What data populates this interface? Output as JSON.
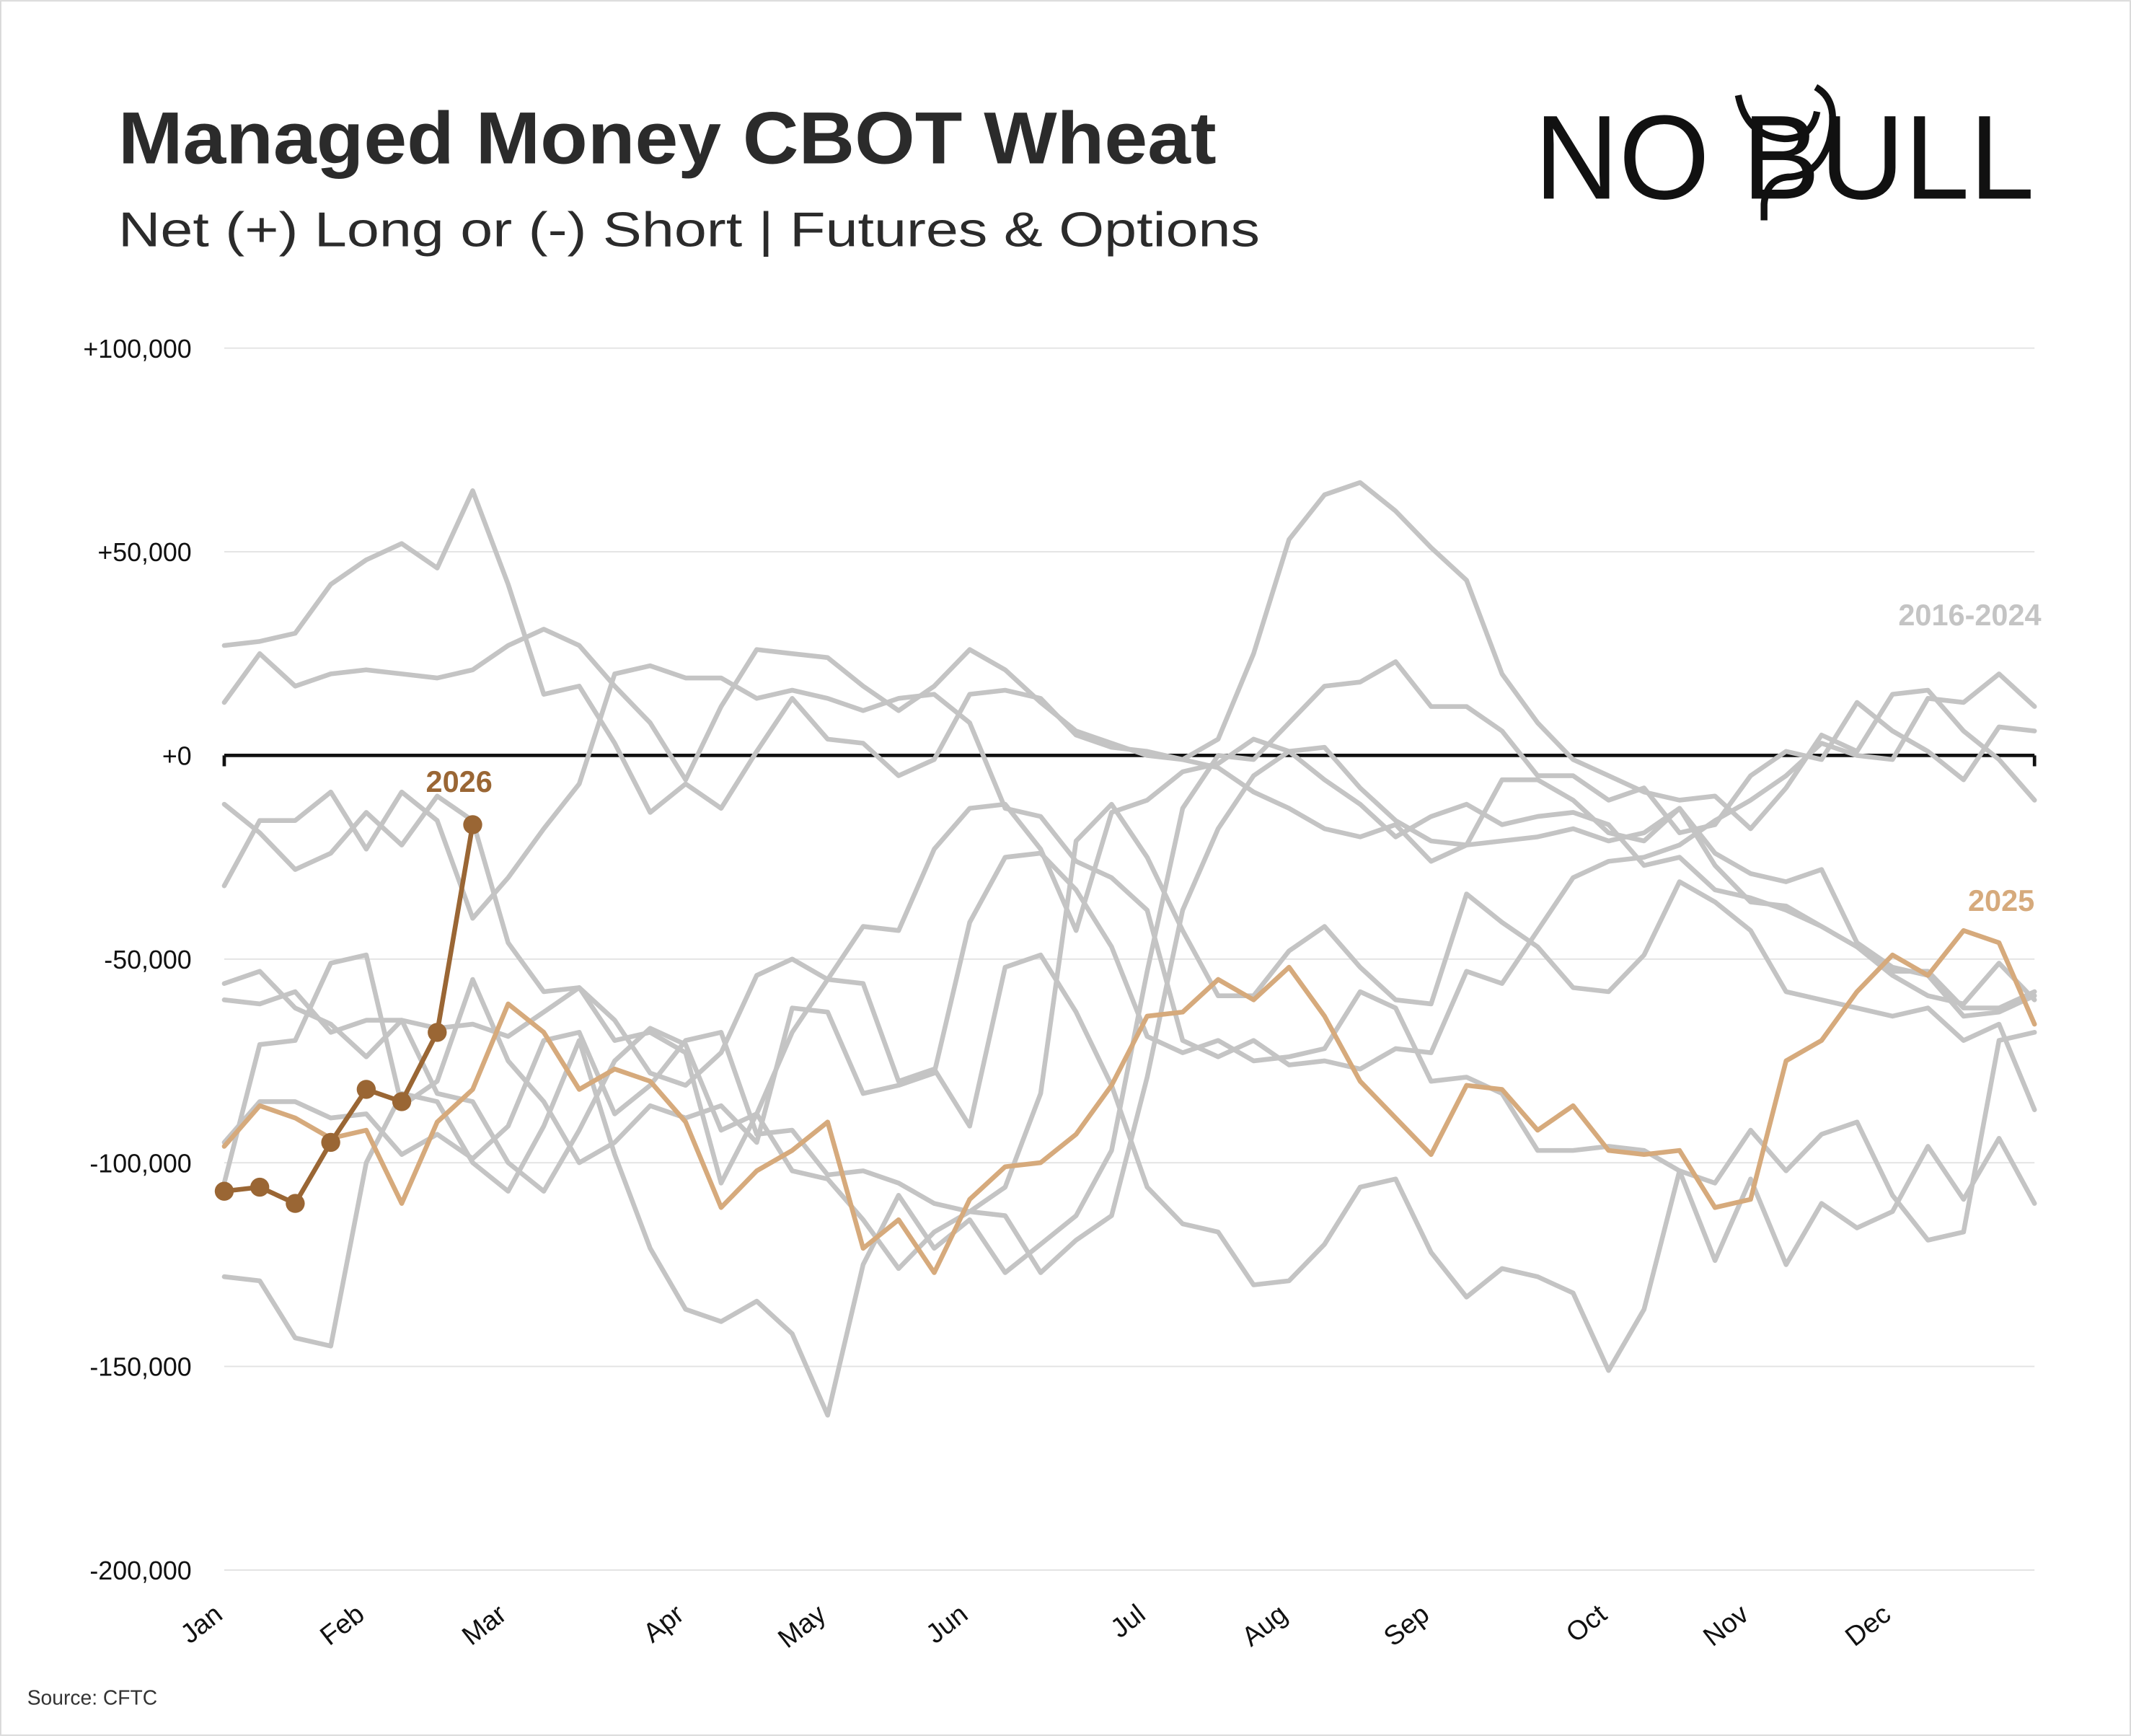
{
  "chart_data": {
    "type": "line",
    "title": "Managed Money CBOT Wheat",
    "subtitle": "Net (+) Long or (-) Short | Futures & Options",
    "logo": "NO BULL",
    "source": "Source: CFTC",
    "group_label": "2016-2024",
    "group_color": "#c4c4c4",
    "grid": true,
    "categories": [
      "Jan",
      null,
      null,
      null,
      "Feb",
      null,
      null,
      null,
      "Mar",
      null,
      null,
      null,
      null,
      "Apr",
      null,
      null,
      null,
      "May",
      null,
      null,
      null,
      "Jun",
      null,
      null,
      null,
      null,
      "Jul",
      null,
      null,
      null,
      "Aug",
      null,
      null,
      null,
      "Sep",
      null,
      null,
      null,
      null,
      "Oct",
      null,
      null,
      null,
      "Nov",
      null,
      null,
      null,
      "Dec",
      null,
      null,
      null,
      null
    ],
    "ylim": [
      -200000,
      100000
    ],
    "yticks": [
      {
        "value": -200000,
        "label": "-200,000"
      },
      {
        "value": -150000,
        "label": "-150,000"
      },
      {
        "value": -100000,
        "label": "-100,000"
      },
      {
        "value": -50000,
        "label": "-50,000"
      },
      {
        "value": 0,
        "label": "+0"
      },
      {
        "value": 50000,
        "label": "+50,000"
      },
      {
        "value": 100000,
        "label": "+100,000"
      }
    ],
    "series": [
      {
        "color": "#c4c4c4",
        "values": [
          27000,
          28000,
          30000,
          42000,
          48000,
          52000,
          46000,
          65000,
          42000,
          15000,
          17000,
          3000,
          -14000,
          -7000,
          -13000,
          1000,
          14000,
          4000,
          3000,
          -5000,
          -1000,
          15000,
          16000,
          14000,
          5000,
          2000,
          1000,
          -1000,
          -3000,
          -9000,
          -13000,
          -18000,
          -20000,
          -17000,
          -26000,
          -22000,
          -21000,
          -20000,
          -18000,
          -21000,
          -19000,
          -13000,
          -27000,
          -36000,
          -37000,
          -42000,
          -47000,
          -53000,
          -53000,
          -62000,
          -62000,
          -58000
        ]
      },
      {
        "color": "#c4c4c4",
        "values": [
          13000,
          25000,
          17000,
          20000,
          21000,
          20000,
          19000,
          21000,
          27000,
          31000,
          27000,
          17000,
          8000,
          -6000,
          12000,
          26000,
          25000,
          24000,
          17000,
          11000,
          17000,
          26000,
          21000,
          13000,
          6000,
          3000,
          0,
          -1000,
          4000,
          25000,
          53000,
          64000,
          67000,
          60000,
          51000,
          43000,
          20000,
          8000,
          -1000,
          -5000,
          -9000,
          -11000,
          -10000,
          -18000,
          -8000,
          5000,
          1000,
          15000,
          16000,
          6000,
          -1000,
          -11000
        ]
      },
      {
        "color": "#c4c4c4",
        "values": [
          -12000,
          -19000,
          -28000,
          -24000,
          -14000,
          -22000,
          -10000,
          -16000,
          -46000,
          -58000,
          -57000,
          -70000,
          -68000,
          -73000,
          -105000,
          -88000,
          -68000,
          -55000,
          -42000,
          -43000,
          -23000,
          -13000,
          -12000,
          -23000,
          -43000,
          -14000,
          -11000,
          -4000,
          -2000,
          4000,
          1000,
          -6000,
          -12000,
          -20000,
          -15000,
          -12000,
          -17000,
          -15000,
          -14000,
          -17000,
          -27000,
          -25000,
          -33000,
          -35000,
          -38000,
          -42000,
          -47000,
          -54000,
          -59000,
          -61000,
          -51000,
          -60000
        ]
      },
      {
        "color": "#c4c4c4",
        "values": [
          -32000,
          -16000,
          -16000,
          -9000,
          -23000,
          -9000,
          -16000,
          -40000,
          -30000,
          -18000,
          -7000,
          20000,
          22000,
          19000,
          19000,
          14000,
          16000,
          14000,
          11000,
          14000,
          15000,
          8000,
          -13000,
          -15000,
          -26000,
          -30000,
          -38000,
          -70000,
          -74000,
          -70000,
          -76000,
          -75000,
          -77000,
          -72000,
          -73000,
          -53000,
          -56000,
          -43000,
          -30000,
          -26000,
          -25000,
          -22000,
          -16000,
          -11000,
          -5000,
          3000,
          0,
          -1000,
          14000,
          13000,
          20000,
          12000
        ]
      },
      {
        "color": "#c4c4c4",
        "values": [
          -56000,
          -53000,
          -62000,
          -66000,
          -74000,
          -65000,
          -83000,
          -85000,
          -100000,
          -107000,
          -92000,
          -75000,
          -67000,
          -71000,
          -92000,
          -88000,
          -102000,
          -104000,
          -114000,
          -126000,
          -117000,
          -112000,
          -113000,
          -127000,
          -119000,
          -113000,
          -79000,
          -38000,
          -18000,
          -5000,
          1000,
          2000,
          -8000,
          -16000,
          -21000,
          -22000,
          -6000,
          -6000,
          -11000,
          -19000,
          -21000,
          -13000,
          -24000,
          -29000,
          -31000,
          -28000,
          -46000,
          -52000,
          -54000,
          -64000,
          -63000,
          -59000
        ]
      },
      {
        "color": "#c4c4c4",
        "values": [
          -60000,
          -61000,
          -58000,
          -68000,
          -65000,
          -65000,
          -67000,
          -66000,
          -69000,
          -63000,
          -57000,
          -65000,
          -78000,
          -81000,
          -73000,
          -54000,
          -50000,
          -55000,
          -56000,
          -80000,
          -77000,
          -91000,
          -52000,
          -49000,
          -63000,
          -81000,
          -106000,
          -115000,
          -117000,
          -130000,
          -129000,
          -120000,
          -106000,
          -104000,
          -122000,
          -133000,
          -126000,
          -128000,
          -132000,
          -151000,
          -136000,
          -102000,
          -105000,
          -92000,
          -102000,
          -93000,
          -90000,
          -108000,
          -119000,
          -117000,
          -70000,
          -68000
        ]
      },
      {
        "color": "#c4c4c4",
        "values": [
          -128000,
          -129000,
          -143000,
          -145000,
          -100000,
          -83000,
          -85000,
          -100000,
          -107000,
          -91000,
          -70000,
          -98000,
          -121000,
          -136000,
          -139000,
          -134000,
          -142000,
          -162000,
          -125000,
          -108000,
          -121000,
          -114000,
          -127000,
          -120000,
          -113000,
          -97000,
          -53000,
          -13000,
          0,
          -1000,
          8000,
          17000,
          18000,
          23000,
          12000,
          12000,
          6000,
          -5000,
          -5000,
          -11000,
          -8000,
          -19000,
          -17000,
          -5000,
          1000,
          -1000,
          13000,
          6000,
          1000,
          -6000,
          7000,
          6000
        ]
      },
      {
        "color": "#c4c4c4",
        "values": [
          -105000,
          -71000,
          -70000,
          -51000,
          -49000,
          -86000,
          -80000,
          -55000,
          -75000,
          -85000,
          -100000,
          -95000,
          -86000,
          -89000,
          -86000,
          -95000,
          -62000,
          -63000,
          -83000,
          -81000,
          -78000,
          -41000,
          -25000,
          -24000,
          -33000,
          -47000,
          -69000,
          -73000,
          -70000,
          -75000,
          -74000,
          -72000,
          -58000,
          -62000,
          -80000,
          -79000,
          -83000,
          -97000,
          -97000,
          -96000,
          -97000,
          -102000,
          -124000,
          -104000,
          -125000,
          -110000,
          -116000,
          -112000,
          -96000,
          -109000,
          -94000,
          -110000
        ]
      },
      {
        "color": "#c4c4c4",
        "values": [
          -95000,
          -85000,
          -85000,
          -89000,
          -88000,
          -98000,
          -93000,
          -99000,
          -91000,
          -70000,
          -68000,
          -88000,
          -81000,
          -70000,
          -68000,
          -93000,
          -92000,
          -103000,
          -102000,
          -105000,
          -110000,
          -112000,
          -106000,
          -83000,
          -21000,
          -12000,
          -25000,
          -43000,
          -59000,
          -59000,
          -48000,
          -42000,
          -52000,
          -60000,
          -61000,
          -34000,
          -41000,
          -47000,
          -57000,
          -58000,
          -49000,
          -31000,
          -36000,
          -43000,
          -58000,
          -60000,
          -62000,
          -64000,
          -62000,
          -70000,
          -66000,
          -87000
        ]
      },
      {
        "name": "2025",
        "color": "#d6aa7c",
        "values": [
          -96000,
          -86000,
          -89000,
          -94000,
          -92000,
          -110000,
          -90000,
          -82000,
          -61000,
          -68000,
          -82000,
          -77000,
          -80000,
          -90000,
          -111000,
          -102000,
          -97000,
          -90000,
          -121000,
          -114000,
          -127000,
          -109000,
          -101000,
          -100000,
          -93000,
          -81000,
          -64000,
          -63000,
          -55000,
          -60000,
          -52000,
          -64000,
          -80000,
          -89000,
          -98000,
          -81000,
          -82000,
          -92000,
          -86000,
          -97000,
          -98000,
          -97000,
          -111000,
          -109000,
          -75000,
          -70000,
          -58000,
          -49000,
          -54000,
          -43000,
          -46000,
          -66000
        ]
      },
      {
        "name": "2026",
        "color": "#9a6634",
        "markers": true,
        "values": [
          -107000,
          -106000,
          -110000,
          -95000,
          -82000,
          -85000,
          -68000,
          -17000,
          null,
          null,
          null,
          null,
          null,
          null,
          null,
          null,
          null,
          null,
          null,
          null,
          null,
          null,
          null,
          null,
          null,
          null,
          null,
          null,
          null,
          null,
          null,
          null,
          null,
          null,
          null,
          null,
          null,
          null,
          null,
          null,
          null,
          null,
          null,
          null,
          null,
          null,
          null,
          null,
          null,
          null,
          null,
          null
        ]
      }
    ]
  }
}
